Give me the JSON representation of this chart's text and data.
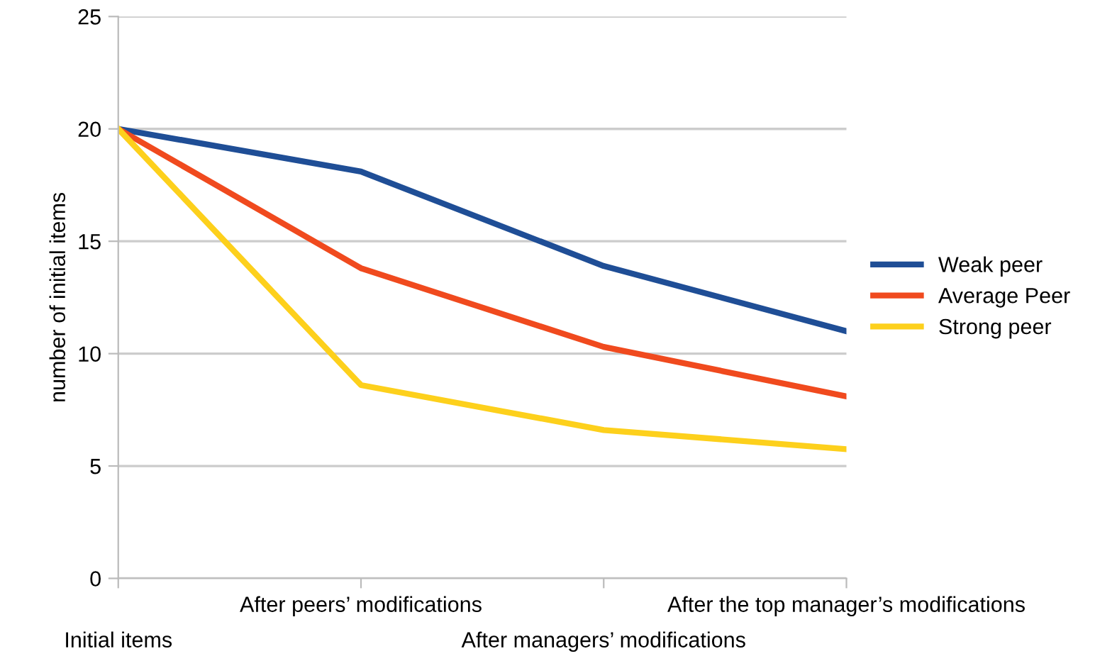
{
  "chart_data": {
    "type": "line",
    "ylabel": "number of initial items",
    "categories": [
      "Initial items",
      "After peers’ modifications",
      "After managers’ modifications",
      "After the top manager’s modifications"
    ],
    "series": [
      {
        "name": "Weak peer",
        "color": "#1f4e96",
        "values": [
          20,
          18.1,
          13.9,
          11
        ]
      },
      {
        "name": "Average Peer",
        "color": "#f04a1e",
        "values": [
          20,
          13.8,
          10.3,
          8.1
        ]
      },
      {
        "name": "Strong peer",
        "color": "#fdd01c",
        "values": [
          20,
          8.6,
          6.6,
          5.75
        ]
      }
    ],
    "ylim": [
      0,
      25
    ],
    "yticks": [
      0,
      5,
      10,
      15,
      20,
      25
    ],
    "grid": "y",
    "legend": "right",
    "marker": "none",
    "line_style": "solid"
  }
}
